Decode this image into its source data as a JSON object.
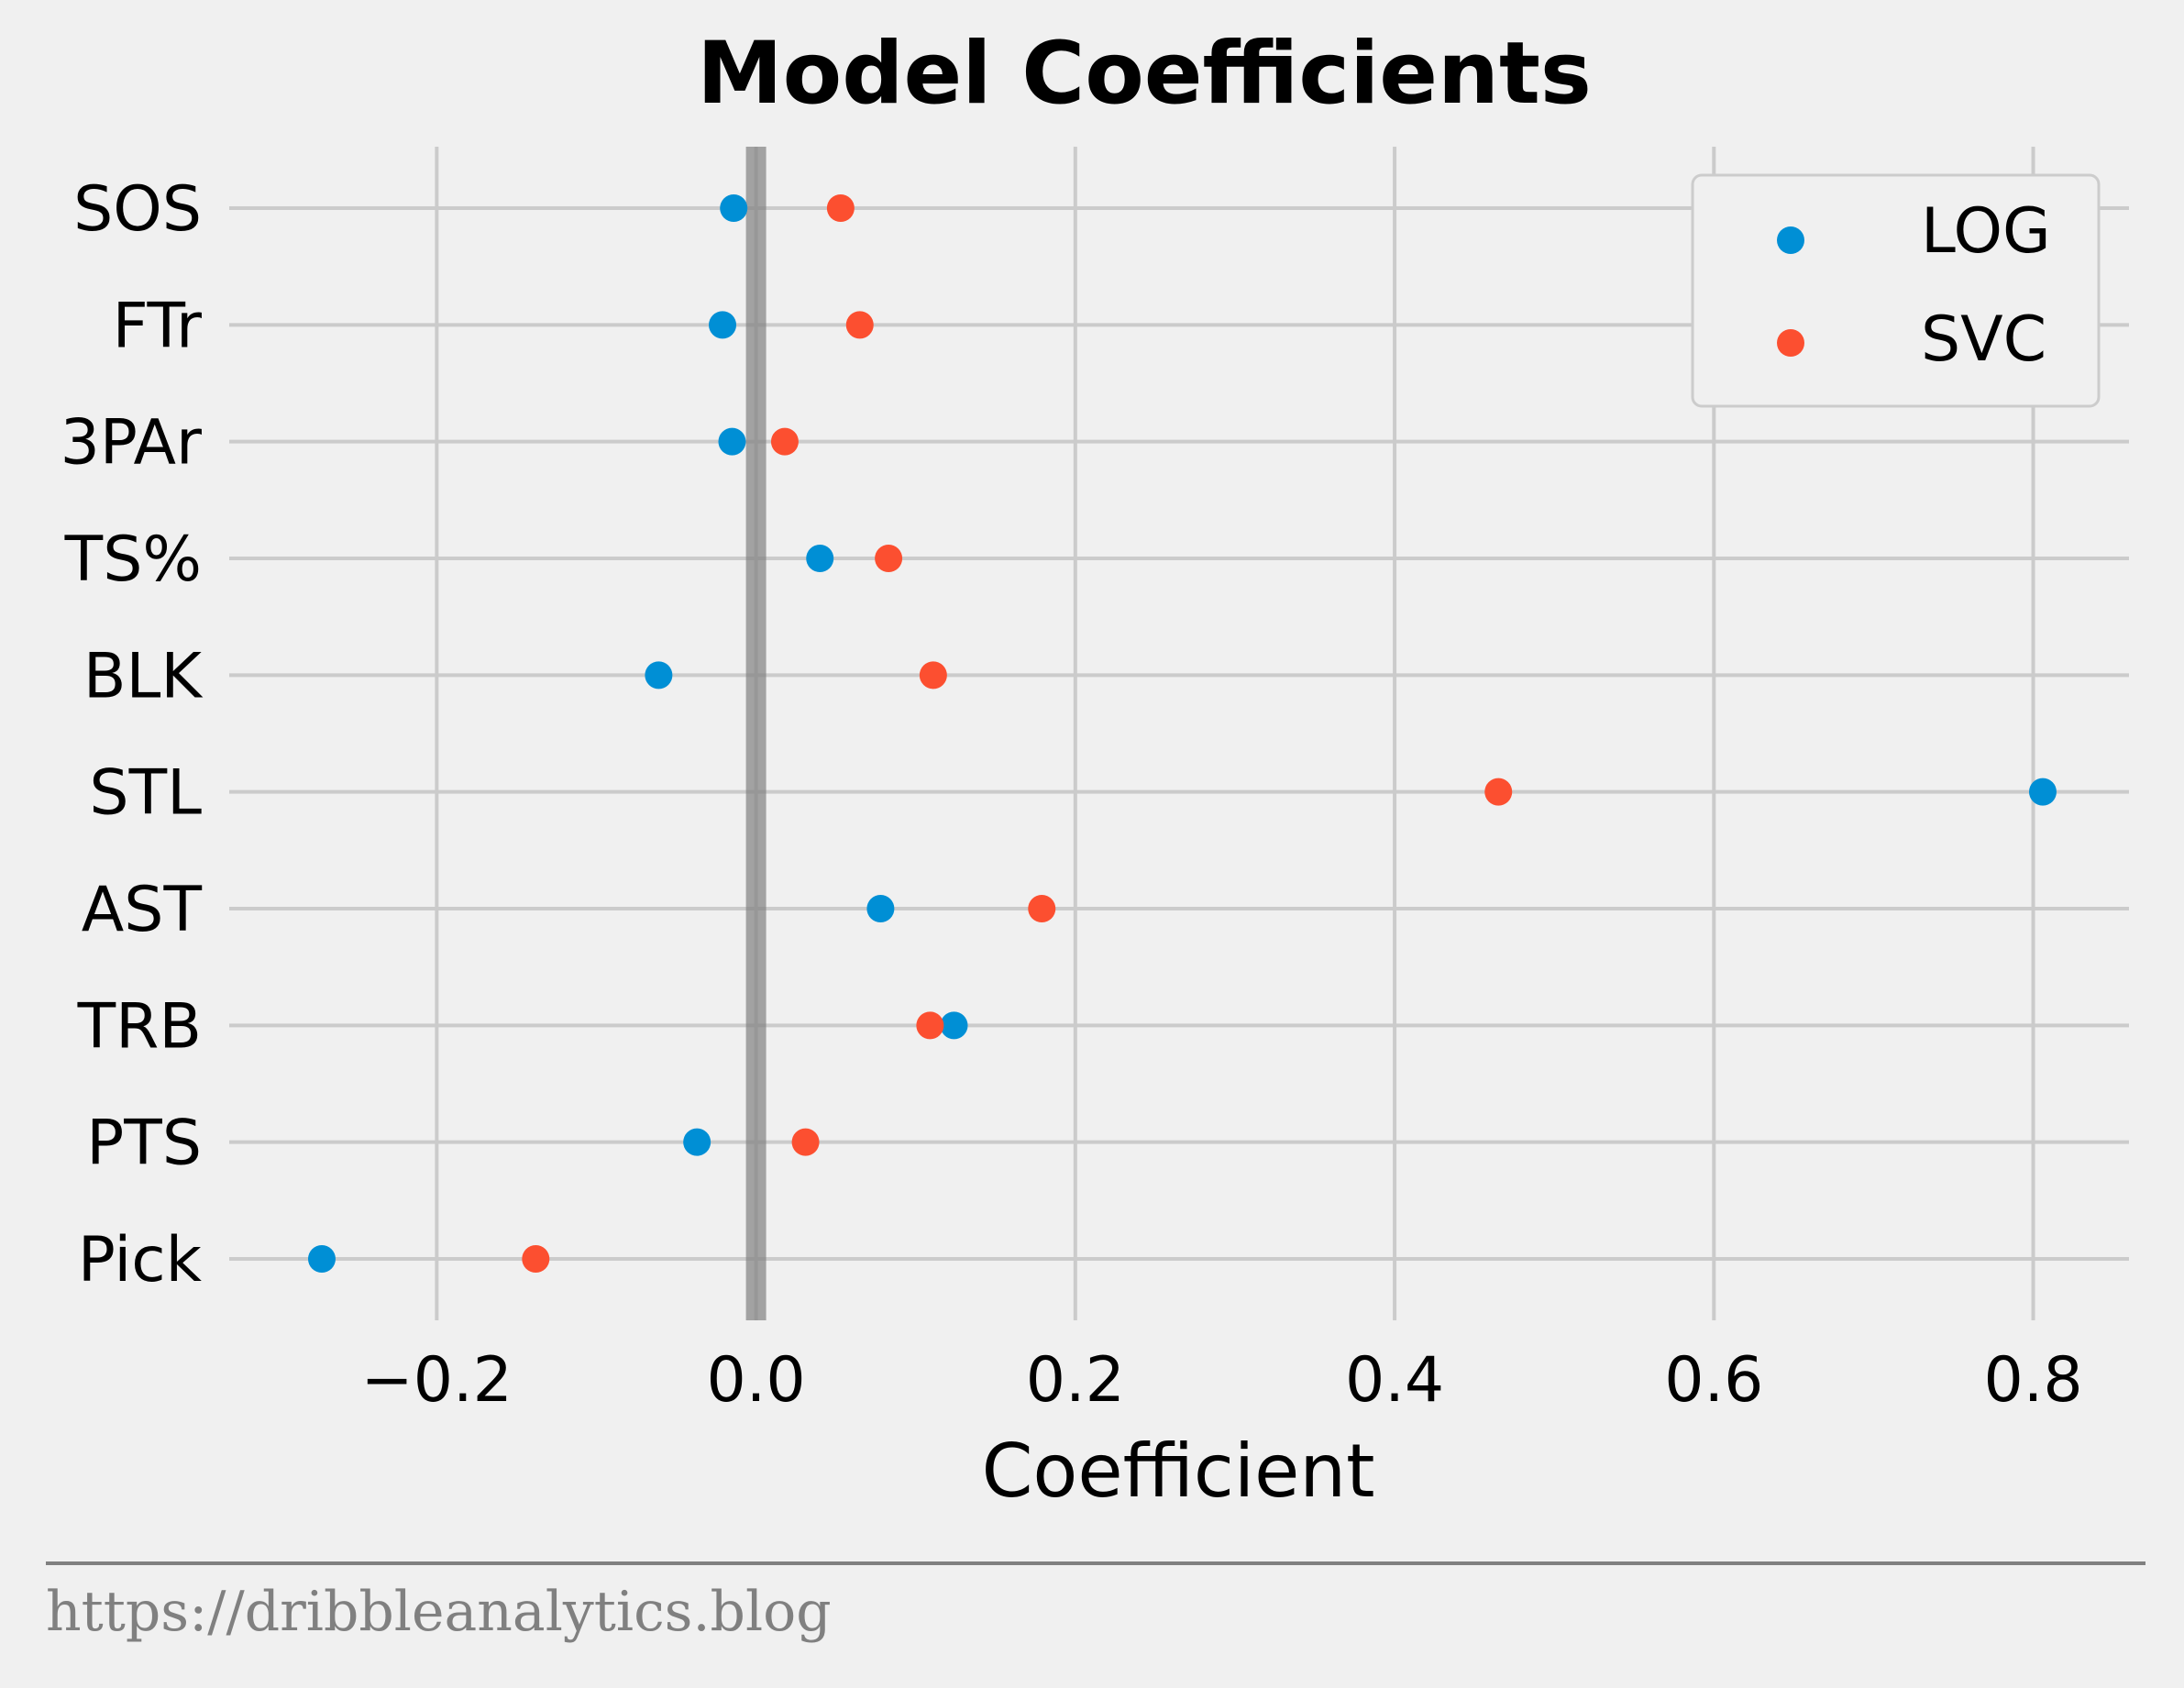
{
  "chart_data": {
    "type": "scatter",
    "title": "Model Coefficients",
    "xlabel": "Coefficient",
    "ylabel": "",
    "categories": [
      "Pick",
      "PTS",
      "TRB",
      "AST",
      "STL",
      "BLK",
      "TS%",
      "3PAr",
      "FTr",
      "SOS"
    ],
    "series": [
      {
        "name": "LOG",
        "color": "#008fd5",
        "values": [
          -0.272,
          -0.037,
          0.124,
          0.078,
          0.806,
          -0.061,
          0.04,
          -0.015,
          -0.021,
          -0.014
        ]
      },
      {
        "name": "SVC",
        "color": "#fc4f30",
        "values": [
          -0.138,
          0.031,
          0.109,
          0.179,
          0.465,
          0.111,
          0.083,
          0.018,
          0.065,
          0.053
        ]
      }
    ],
    "xlim": [
      -0.33,
      0.86
    ],
    "xticks": [
      -0.2,
      0.0,
      0.2,
      0.4,
      0.6,
      0.8
    ],
    "xtick_labels": [
      "−0.2",
      "0.0",
      "0.2",
      "0.4",
      "0.6",
      "0.8"
    ],
    "reference_line": 0.0,
    "grid": true,
    "legend_position": "top-right"
  },
  "footer": {
    "source": "https://dribbleanalytics.blog"
  }
}
